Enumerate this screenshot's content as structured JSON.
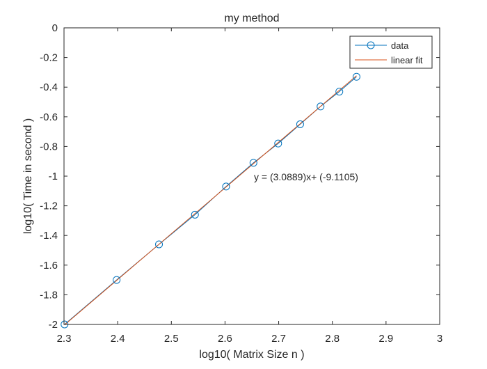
{
  "chart_data": {
    "type": "line",
    "title": "my method",
    "xlabel": "log10( Matrix Size n )",
    "ylabel": "log10( Time in second )",
    "xlim": [
      2.3,
      3.0
    ],
    "ylim": [
      -2.0,
      0.0
    ],
    "xticks": [
      "2.3",
      "2.4",
      "2.5",
      "2.6",
      "2.7",
      "2.8",
      "2.9",
      "3"
    ],
    "yticks": [
      "-2",
      "-1.8",
      "-1.6",
      "-1.4",
      "-1.2",
      "-1",
      "-0.8",
      "-0.6",
      "-0.4",
      "-0.2",
      "0"
    ],
    "grid": false,
    "legend_position": "top-right",
    "annotation": "y = (3.0889)x+ (-9.1105)",
    "colors": {
      "data": "#0072BD",
      "fit": "#D95319"
    },
    "series": [
      {
        "name": "data",
        "marker": "circle",
        "x": [
          2.301,
          2.398,
          2.477,
          2.544,
          2.602,
          2.653,
          2.699,
          2.74,
          2.778,
          2.813,
          2.845
        ],
        "y": [
          -2.0,
          -1.7,
          -1.46,
          -1.26,
          -1.07,
          -0.91,
          -0.78,
          -0.65,
          -0.53,
          -0.43,
          -0.33
        ]
      },
      {
        "name": "linear fit",
        "marker": "none",
        "slope": 3.0889,
        "intercept": -9.1105,
        "x": [
          2.301,
          2.845
        ]
      }
    ]
  }
}
